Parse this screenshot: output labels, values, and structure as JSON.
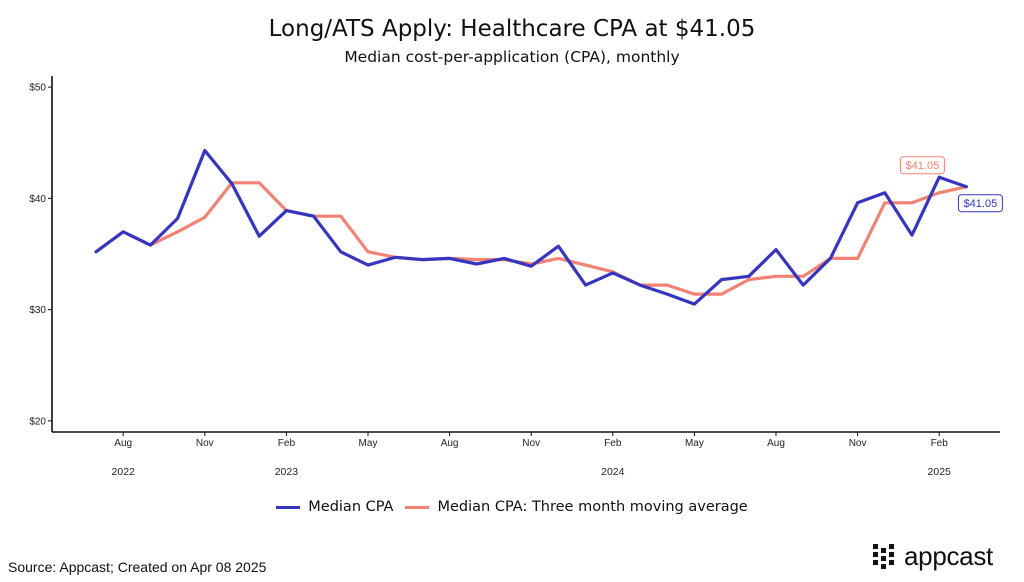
{
  "title": "Long/ATS Apply: Healthcare CPA at $41.05",
  "subtitle": "Median cost-per-application (CPA), monthly",
  "source": "Source: Appcast; Created on Apr 08 2025",
  "brand": {
    "name": "appcast",
    "icon": "appcast-dot-grid-logo"
  },
  "colors": {
    "median": "#3535c0",
    "moving_avg": "#f28273"
  },
  "chart_data": {
    "type": "line",
    "x": [
      "2022-07",
      "2022-08",
      "2022-09",
      "2022-10",
      "2022-11",
      "2022-12",
      "2023-01",
      "2023-02",
      "2023-03",
      "2023-04",
      "2023-05",
      "2023-06",
      "2023-07",
      "2023-08",
      "2023-09",
      "2023-10",
      "2023-11",
      "2023-12",
      "2024-01",
      "2024-02",
      "2024-03",
      "2024-04",
      "2024-05",
      "2024-06",
      "2024-07",
      "2024-08",
      "2024-09",
      "2024-10",
      "2024-11",
      "2024-12",
      "2025-01",
      "2025-02",
      "2025-03"
    ],
    "series": [
      {
        "name": "Median CPA",
        "color": "#3535c0",
        "values": [
          35.2,
          37.0,
          35.8,
          38.2,
          44.3,
          41.3,
          36.6,
          38.9,
          38.4,
          35.2,
          34.0,
          34.7,
          34.5,
          34.6,
          34.1,
          34.6,
          33.9,
          35.7,
          32.2,
          33.3,
          32.2,
          31.4,
          30.5,
          32.7,
          33.0,
          35.4,
          32.2,
          34.6,
          39.6,
          40.5,
          36.7,
          41.9,
          41.05
        ]
      },
      {
        "name": "Median CPA: Three month moving average",
        "color": "#f28273",
        "values": [
          null,
          null,
          35.8,
          37.0,
          38.3,
          41.4,
          41.4,
          38.9,
          38.4,
          38.4,
          35.2,
          34.7,
          34.5,
          34.6,
          34.5,
          34.5,
          34.1,
          34.6,
          34.0,
          33.4,
          32.2,
          32.2,
          31.4,
          31.4,
          32.7,
          33.0,
          33.0,
          34.6,
          34.6,
          39.6,
          39.6,
          40.5,
          41.05
        ]
      }
    ],
    "ylim": [
      19,
      51
    ],
    "yticks": [
      20,
      30,
      40,
      50
    ],
    "ytick_labels": [
      "$20",
      "$30",
      "$40",
      "$50"
    ],
    "xticks": [
      {
        "x": "2022-08",
        "label": "Aug"
      },
      {
        "x": "2022-11",
        "label": "Nov"
      },
      {
        "x": "2023-02",
        "label": "Feb"
      },
      {
        "x": "2023-05",
        "label": "May"
      },
      {
        "x": "2023-08",
        "label": "Aug"
      },
      {
        "x": "2023-11",
        "label": "Nov"
      },
      {
        "x": "2024-02",
        "label": "Feb"
      },
      {
        "x": "2024-05",
        "label": "May"
      },
      {
        "x": "2024-08",
        "label": "Aug"
      },
      {
        "x": "2024-11",
        "label": "Nov"
      },
      {
        "x": "2025-02",
        "label": "Feb"
      }
    ],
    "year_labels": [
      {
        "x": "2022-08",
        "label": "2022"
      },
      {
        "x": "2023-02",
        "label": "2023"
      },
      {
        "x": "2024-02",
        "label": "2024"
      },
      {
        "x": "2025-02",
        "label": "2025"
      }
    ],
    "annotations": [
      {
        "series": 1,
        "label": "$41.05",
        "placement": "above-left"
      },
      {
        "series": 0,
        "label": "$41.05",
        "placement": "below-right"
      }
    ],
    "legend": "bottom",
    "grid": false
  }
}
